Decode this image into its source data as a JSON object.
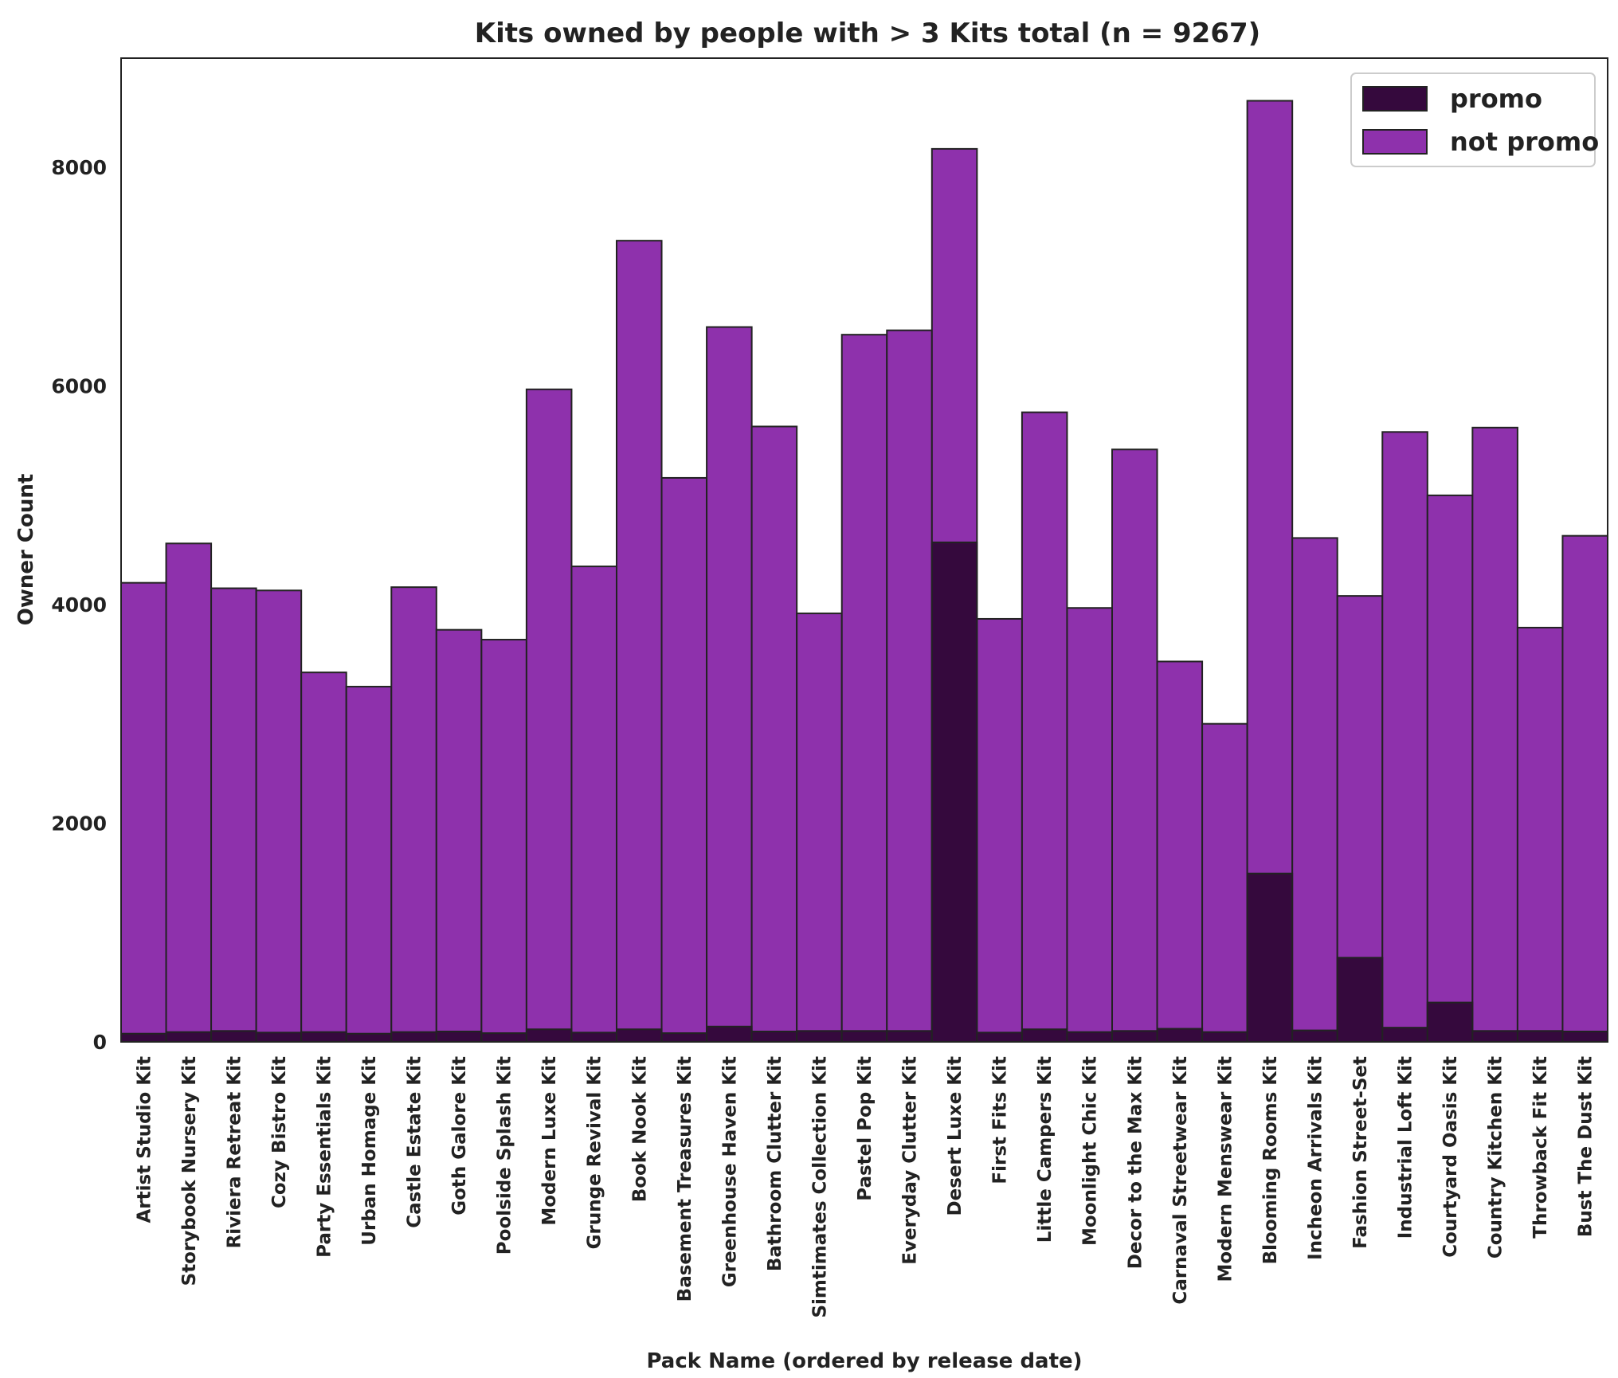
{
  "chart_data": {
    "type": "bar",
    "title": "Kits owned by people with > 3 Kits total (n = 9267)",
    "xlabel": "Pack Name (ordered by release date)",
    "ylabel": "Owner Count",
    "ylim": [
      0,
      9000
    ],
    "yticks": [
      0,
      2000,
      4000,
      6000,
      8000
    ],
    "grid": false,
    "legend_position": "top-right",
    "categories": [
      "Artist Studio Kit",
      "Storybook Nursery Kit",
      "Riviera Retreat Kit",
      "Cozy Bistro Kit",
      "Party Essentials Kit",
      "Urban Homage Kit",
      "Castle Estate Kit",
      "Goth Galore Kit",
      "Poolside Splash Kit",
      "Modern Luxe Kit",
      "Grunge Revival Kit",
      "Book Nook Kit",
      "Basement Treasures Kit",
      "Greenhouse Haven Kit",
      "Bathroom Clutter Kit",
      "Simtimates Collection Kit",
      "Pastel Pop Kit",
      "Everyday Clutter Kit",
      "Desert Luxe Kit",
      "First Fits Kit",
      "Little Campers Kit",
      "Moonlight Chic Kit",
      "Decor to the Max Kit",
      "Carnaval Streetwear Kit",
      "Modern Menswear Kit",
      "Blooming Rooms Kit",
      "Incheon Arrivals Kit",
      "Fashion Street-Set",
      "Industrial Loft Kit",
      "Courtyard Oasis Kit",
      "Country Kitchen Kit",
      "Throwback Fit Kit",
      "Bust The Dust Kit"
    ],
    "series": [
      {
        "name": "promo",
        "color": "#35093d",
        "values": [
          75,
          90,
          100,
          85,
          90,
          75,
          90,
          95,
          80,
          115,
          85,
          115,
          80,
          140,
          95,
          100,
          100,
          100,
          4570,
          85,
          115,
          90,
          100,
          120,
          90,
          1540,
          105,
          770,
          130,
          360,
          100,
          100,
          95
        ]
      },
      {
        "name": "not promo",
        "color": "#8e31ac",
        "values": [
          4200,
          4560,
          4150,
          4130,
          3380,
          3250,
          4160,
          3770,
          3680,
          5970,
          4350,
          7330,
          5160,
          6540,
          5630,
          3920,
          6470,
          6510,
          8170,
          3870,
          5760,
          3970,
          5420,
          3480,
          2910,
          8610,
          4610,
          4080,
          5580,
          5000,
          5620,
          3790,
          4630
        ]
      }
    ]
  }
}
